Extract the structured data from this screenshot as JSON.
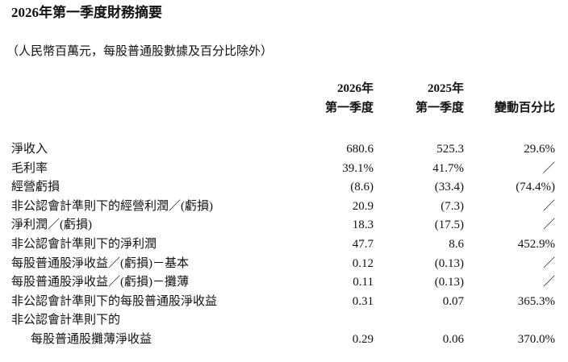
{
  "header": {
    "title": "2026年第一季度財務摘要",
    "subtitle": "（人民幣百萬元，每股普通股數據及百分比除外）"
  },
  "table": {
    "columns": [
      [
        "2026年",
        "第一季度"
      ],
      [
        "2025年",
        "第一季度"
      ],
      [
        "變動百分比"
      ]
    ],
    "rows": [
      {
        "label": [
          "淨收入"
        ],
        "values": [
          "680.6",
          "525.3",
          "29.6%"
        ]
      },
      {
        "label": [
          "毛利率"
        ],
        "values": [
          "39.1%",
          "41.7%",
          "／"
        ]
      },
      {
        "label": [
          "經營虧損"
        ],
        "values": [
          "(8.6)",
          "(33.4)",
          "(74.4%)"
        ]
      },
      {
        "label": [
          "非公認會計準則下的經營利潤／(虧損)"
        ],
        "values": [
          "20.9",
          "(7.3)",
          "／"
        ]
      },
      {
        "label": [
          "淨利潤／(虧損)"
        ],
        "values": [
          "18.3",
          "(17.5)",
          "／"
        ]
      },
      {
        "label": [
          "非公認會計準則下的淨利潤"
        ],
        "values": [
          "47.7",
          "8.6",
          "452.9%"
        ]
      },
      {
        "label": [
          "每股普通股淨收益／(虧損)－基本"
        ],
        "values": [
          "0.12",
          "(0.13)",
          "／"
        ]
      },
      {
        "label": [
          "每股普通股淨收益／(虧損)－攤薄"
        ],
        "values": [
          "0.11",
          "(0.13)",
          "／"
        ]
      },
      {
        "label": [
          "非公認會計準則下的每股普通股淨收益"
        ],
        "values": [
          "0.31",
          "0.07",
          "365.3%"
        ]
      },
      {
        "label": [
          "非公認會計準則下的",
          "每股普通股攤薄淨收益"
        ],
        "values": [
          "0.29",
          "0.06",
          "370.0%"
        ]
      }
    ]
  }
}
